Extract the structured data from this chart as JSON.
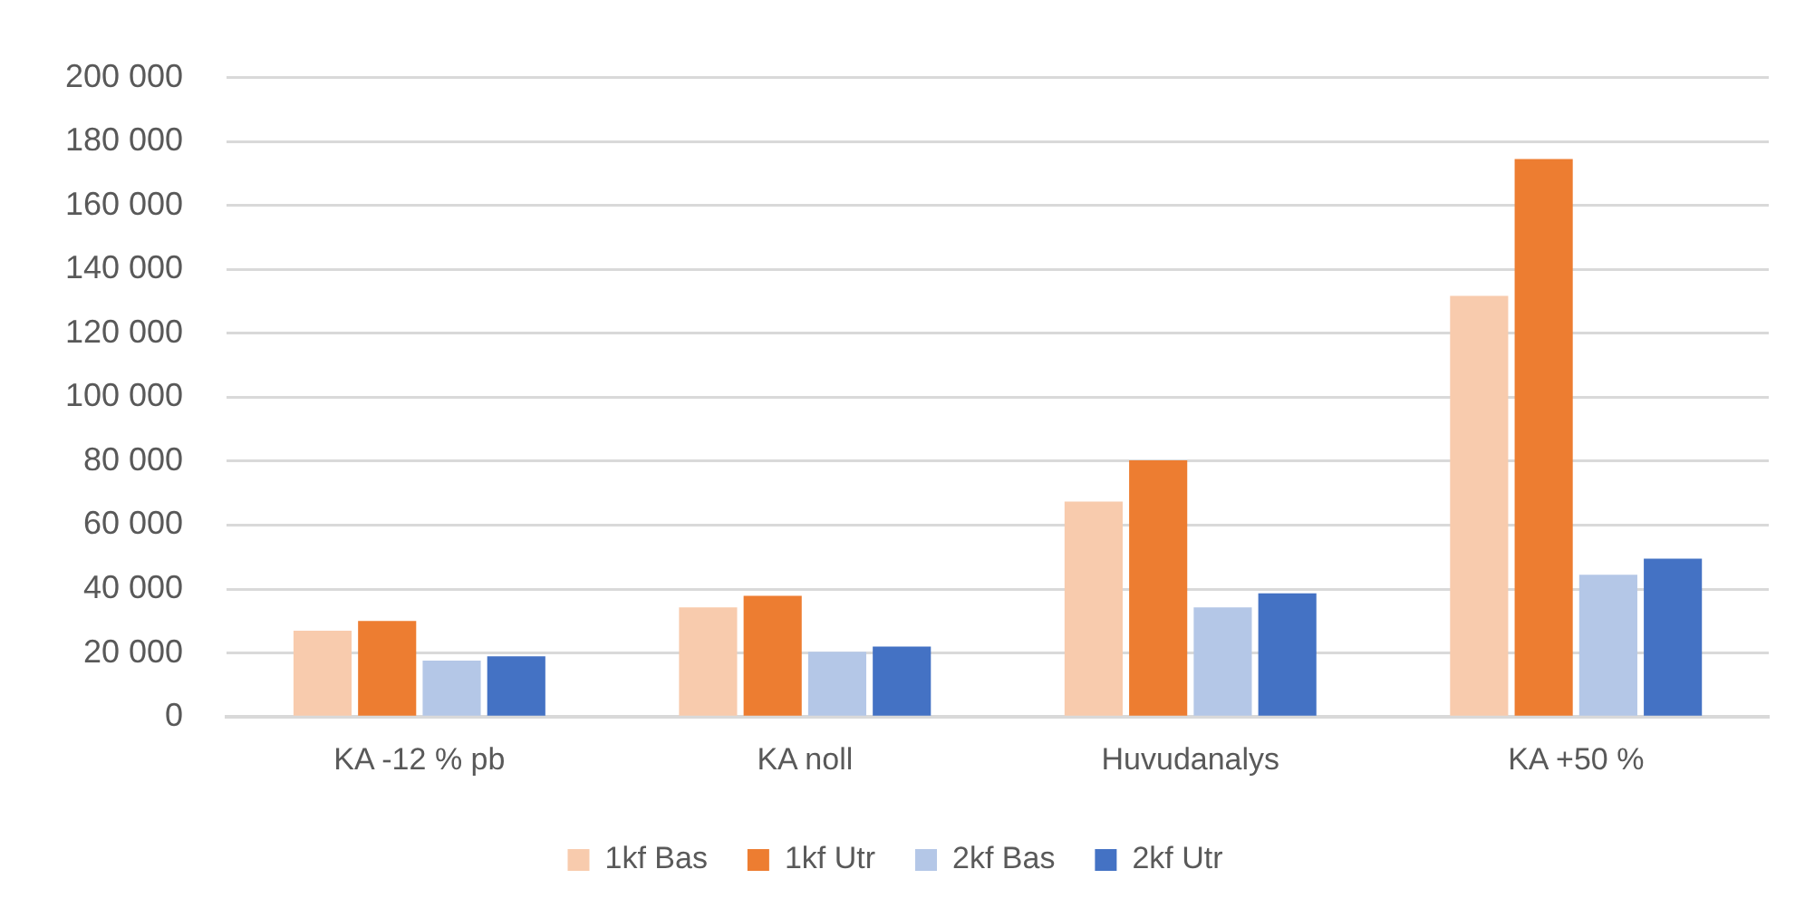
{
  "chart_data": {
    "type": "bar",
    "categories": [
      "KA -12 % pb",
      "KA noll",
      "Huvudanalys",
      "KA +50 %"
    ],
    "series": [
      {
        "name": "1kf Bas",
        "color": "#f8cbad",
        "values": [
          27000,
          34300,
          67400,
          131700
        ]
      },
      {
        "name": "1kf Utr",
        "color": "#ed7d31",
        "values": [
          30000,
          37900,
          80300,
          174500
        ]
      },
      {
        "name": "2kf Bas",
        "color": "#b4c7e7",
        "values": [
          17600,
          20400,
          34300,
          44500
        ]
      },
      {
        "name": "2kf Utr",
        "color": "#4472c4",
        "values": [
          19000,
          22000,
          38700,
          49500
        ]
      }
    ],
    "ylim": [
      0,
      200000
    ],
    "yticks": [
      {
        "value": 0,
        "label": "0"
      },
      {
        "value": 20000,
        "label": "20 000"
      },
      {
        "value": 40000,
        "label": "40 000"
      },
      {
        "value": 60000,
        "label": "60 000"
      },
      {
        "value": 80000,
        "label": "80 000"
      },
      {
        "value": 100000,
        "label": "100 000"
      },
      {
        "value": 120000,
        "label": "120 000"
      },
      {
        "value": 140000,
        "label": "140 000"
      },
      {
        "value": 160000,
        "label": "160 000"
      },
      {
        "value": 180000,
        "label": "180 000"
      },
      {
        "value": 200000,
        "label": "200 000"
      }
    ],
    "grid": "y",
    "legend": "bottom"
  }
}
